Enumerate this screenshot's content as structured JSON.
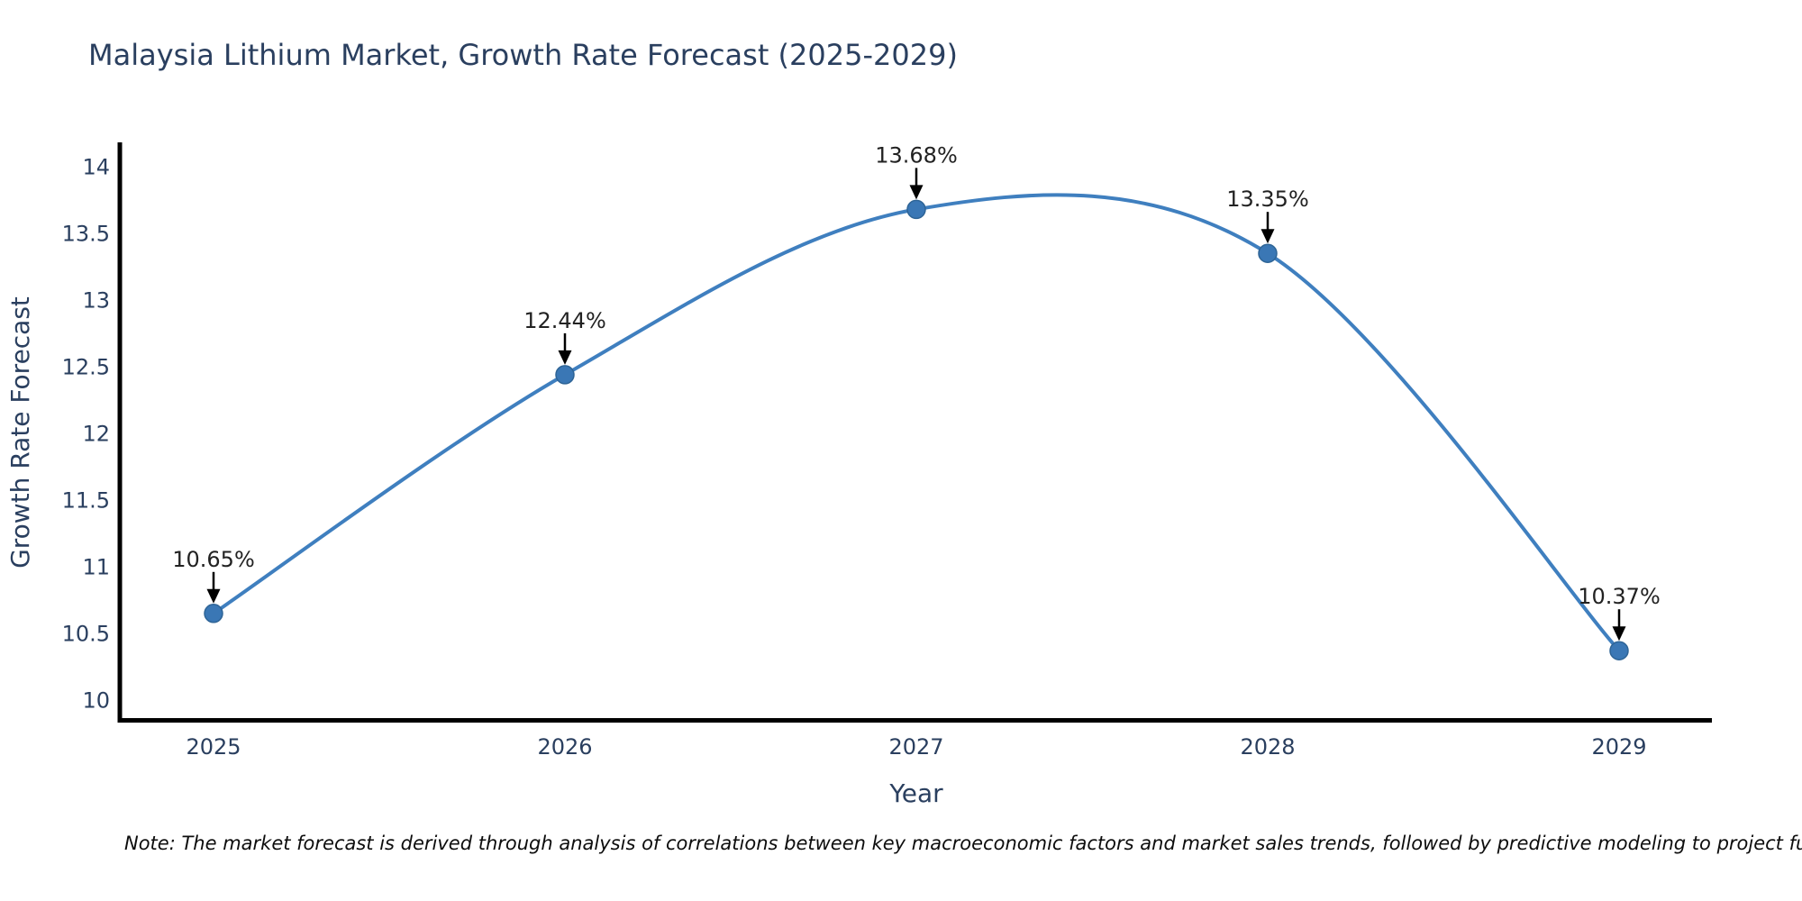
{
  "title": "Malaysia Lithium Market, Growth Rate Forecast (2025-2029)",
  "chart_data": {
    "type": "line",
    "title": "Malaysia Lithium Market, Growth Rate Forecast (2025-2029)",
    "x": [
      "2025",
      "2026",
      "2027",
      "2028",
      "2029"
    ],
    "series": [
      {
        "name": "Growth Rate Forecast",
        "values": [
          10.65,
          12.44,
          13.68,
          13.35,
          10.37
        ]
      }
    ],
    "point_labels": [
      "10.65%",
      "12.44%",
      "13.68%",
      "13.35%",
      "10.37%"
    ],
    "xlabel": "Year",
    "ylabel": "Growth Rate Forecast",
    "yticks": [
      14,
      13.5,
      13,
      12.5,
      12,
      11.5,
      11,
      10.5,
      10
    ],
    "ylim": [
      9.86,
      14.17
    ],
    "line_shape": "spline",
    "grid": false,
    "legend": false,
    "line_color": "#3f7fbf",
    "marker_color": "#3a77b5",
    "marker_edge_color": "#2e6496",
    "arrow_color": "#000000"
  },
  "note": "Note: The market forecast is derived through analysis of correlations between key macroeconomic factors and market sales trends, followed by predictive modeling to project future sal",
  "colors": {
    "title": "#2a3f5f",
    "tick": "#2a3f5f",
    "axis_line": "#000000",
    "annotation_text": "#222222",
    "background": "#ffffff"
  }
}
